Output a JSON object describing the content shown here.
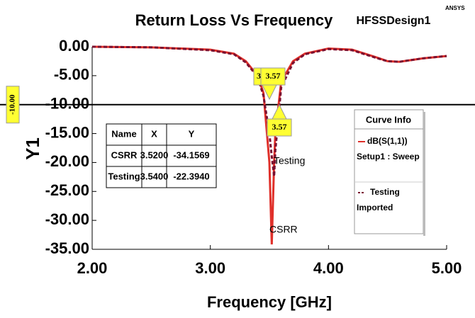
{
  "chart_data": {
    "type": "line",
    "title": "Return Loss Vs Frequency",
    "design": "HFSSDesign1",
    "brand": "ANSYS",
    "xlabel": "Frequency [GHz]",
    "ylabel": "Y1",
    "x": [
      2.0,
      2.5,
      3.0,
      3.2,
      3.3,
      3.4,
      3.45,
      3.5,
      3.52,
      3.54,
      3.55,
      3.6,
      3.7,
      3.8,
      4.0,
      4.2,
      4.4,
      4.5,
      4.6,
      4.8,
      5.0
    ],
    "series": [
      {
        "name": "dB(S(1,1))",
        "source": "Setup1 : Sweep",
        "color": "#e0302a",
        "dash": false,
        "values": [
          0,
          -0.1,
          -0.5,
          -1.2,
          -2.5,
          -5,
          -8,
          -20,
          -34.16,
          -20,
          -15,
          -6,
          -2.5,
          -1.2,
          -0.3,
          -0.5,
          -1.8,
          -2.5,
          -2.6,
          -2.0,
          -1.6
        ]
      },
      {
        "name": "Testing",
        "source": "Imported",
        "color": "#7a1030",
        "dash": true,
        "values": [
          0,
          -0.1,
          -0.6,
          -1.3,
          -2.7,
          -5.2,
          -8.5,
          -15,
          -19,
          -22.39,
          -18,
          -7,
          -2.8,
          -1.3,
          -0.4,
          -0.6,
          -1.9,
          -2.5,
          -2.6,
          -2.0,
          -1.6
        ]
      }
    ],
    "xlim": [
      2.0,
      5.0
    ],
    "xticks": [
      {
        "value": 2,
        "label": "2.00"
      },
      {
        "value": 3,
        "label": "3.00"
      },
      {
        "value": 4,
        "label": "4.00"
      },
      {
        "value": 5,
        "label": "5.00"
      }
    ],
    "ylim": [
      -35,
      0
    ],
    "yticks": [
      {
        "value": 0,
        "label": "0.00"
      },
      {
        "value": -5,
        "label": "-5.00"
      },
      {
        "value": -10,
        "label": "-10.00"
      },
      {
        "value": -15,
        "label": "-15.00"
      },
      {
        "value": -20,
        "label": "-20.00"
      },
      {
        "value": -25,
        "label": "-25.00"
      },
      {
        "value": -30,
        "label": "-30.00"
      },
      {
        "value": -35,
        "label": "-35.00"
      }
    ],
    "hline": {
      "value": -10,
      "label": "-10.00"
    },
    "marker_labels": [
      "3",
      "3.57",
      "3.57"
    ],
    "curve_labels": [
      "Testing",
      "CSRR"
    ],
    "legend": {
      "title": "Curve Info",
      "position": "right"
    },
    "table": {
      "header": [
        "Name",
        "X",
        "Y"
      ],
      "rows": [
        [
          "CSRR",
          "3.5200",
          "-34.1569"
        ],
        [
          "Testing",
          "3.5400",
          "-22.3940"
        ]
      ]
    }
  }
}
